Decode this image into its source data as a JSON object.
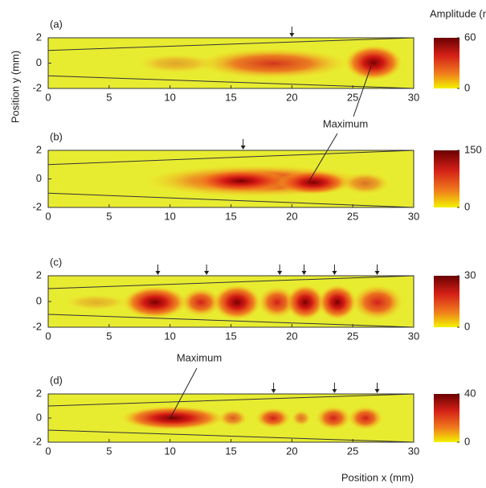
{
  "labels": {
    "colorbar_title": "Amplitude (nm)",
    "y_axis": "Position y (mm)",
    "x_axis": "Position x (mm)",
    "annotation_top": "Maximum",
    "annotation_bottom": "Maximum"
  },
  "chart_data": [
    {
      "type": "heatmap",
      "panel": "(a)",
      "xlim": [
        0,
        30
      ],
      "ylim": [
        -2,
        2
      ],
      "xticks": [
        0,
        5,
        10,
        15,
        20,
        25,
        30
      ],
      "yticks": [
        2,
        0,
        -2
      ],
      "clim": [
        0,
        60
      ],
      "cticks": [
        0,
        60
      ],
      "arrows": [
        20
      ]
    },
    {
      "type": "heatmap",
      "panel": "(b)",
      "xlim": [
        0,
        30
      ],
      "ylim": [
        -2,
        2
      ],
      "xticks": [
        0,
        5,
        10,
        15,
        20,
        25,
        30
      ],
      "yticks": [
        2,
        0,
        -2
      ],
      "clim": [
        0,
        150
      ],
      "cticks": [
        0,
        150
      ],
      "arrows": [
        16
      ]
    },
    {
      "type": "heatmap",
      "panel": "(c)",
      "xlim": [
        0,
        30
      ],
      "ylim": [
        -2,
        2
      ],
      "xticks": [
        0,
        5,
        10,
        15,
        20,
        25,
        30
      ],
      "yticks": [
        2,
        0,
        -2
      ],
      "clim": [
        0,
        30
      ],
      "cticks": [
        0,
        30
      ],
      "arrows": [
        9,
        13,
        19,
        21,
        23.5,
        27
      ]
    },
    {
      "type": "heatmap",
      "panel": "(d)",
      "xlim": [
        0,
        30
      ],
      "ylim": [
        -2,
        2
      ],
      "xticks": [
        0,
        5,
        10,
        15,
        20,
        25,
        30
      ],
      "yticks": [
        2,
        0,
        -2
      ],
      "clim": [
        0,
        40
      ],
      "cticks": [
        0,
        40
      ],
      "arrows": [
        18.5,
        23.5,
        27
      ]
    }
  ]
}
